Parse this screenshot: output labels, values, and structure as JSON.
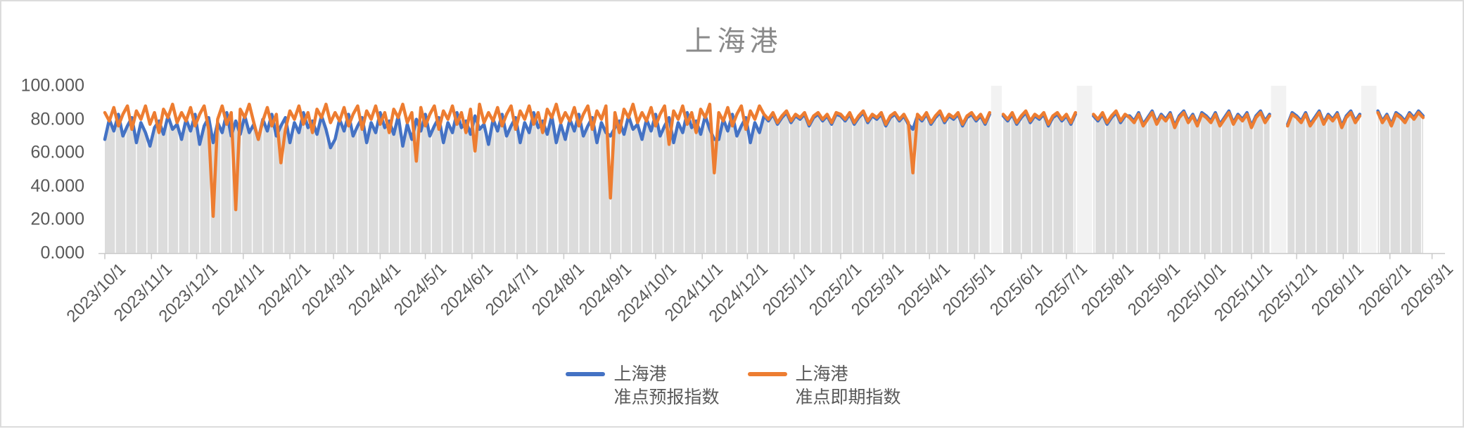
{
  "title": "上海港",
  "colors": {
    "forecast_blue": "#4472C4",
    "spot_orange": "#ED7D31",
    "area_gray": "#DCDCDC",
    "gap_band": "#F2F2F2",
    "gridline_white": "#FFFFFF",
    "axis_line": "#C9C9C9",
    "label_gray": "#595959",
    "title_gray": "#8A8A8A"
  },
  "y_axis": {
    "min": 0,
    "max": 100,
    "tick_labels_top_down": [
      "100.000",
      "80.000",
      "60.000",
      "40.000",
      "20.000",
      "0.000"
    ]
  },
  "legend": {
    "items": [
      {
        "line1": "上海港",
        "line2": "准点预报指数",
        "color": "#4472C4"
      },
      {
        "line1": "上海港",
        "line2": "准点即期指数",
        "color": "#ED7D31"
      }
    ]
  },
  "chart_data": {
    "type": "line",
    "title": "上海港",
    "ylim": [
      0,
      100
    ],
    "grid": "vertical-weekly-white-on-gray-area",
    "legend_position": "bottom-center",
    "x_start_date": "2023/10/1",
    "x_end_date": "2026/3/1",
    "x_unit": "days since 2023/10/1, values sampled every 3 days",
    "sample_step_days": 3,
    "day_ranges": [
      [
        0,
        588
      ],
      [
        597,
        645
      ],
      [
        657,
        774
      ],
      [
        786,
        834
      ],
      [
        846,
        876
      ]
    ],
    "data_gaps_days": [
      [
        589,
        596
      ],
      [
        646,
        656
      ],
      [
        775,
        785
      ],
      [
        835,
        845
      ]
    ],
    "month_ticks": [
      {
        "label": "2023/10/1",
        "day": 0
      },
      {
        "label": "2023/11/1",
        "day": 31
      },
      {
        "label": "2023/12/1",
        "day": 61
      },
      {
        "label": "2024/1/1",
        "day": 92
      },
      {
        "label": "2024/2/1",
        "day": 123
      },
      {
        "label": "2024/3/1",
        "day": 152
      },
      {
        "label": "2024/4/1",
        "day": 183
      },
      {
        "label": "2024/5/1",
        "day": 213
      },
      {
        "label": "2024/6/1",
        "day": 244
      },
      {
        "label": "2024/7/1",
        "day": 274
      },
      {
        "label": "2024/8/1",
        "day": 305
      },
      {
        "label": "2024/9/1",
        "day": 336
      },
      {
        "label": "2024/10/1",
        "day": 366
      },
      {
        "label": "2024/11/1",
        "day": 397
      },
      {
        "label": "2024/12/1",
        "day": 427
      },
      {
        "label": "2025/1/1",
        "day": 458
      },
      {
        "label": "2025/2/1",
        "day": 489
      },
      {
        "label": "2025/3/1",
        "day": 517
      },
      {
        "label": "2025/4/1",
        "day": 548
      },
      {
        "label": "2025/5/1",
        "day": 578
      },
      {
        "label": "2025/6/1",
        "day": 609
      },
      {
        "label": "2025/7/1",
        "day": 639
      },
      {
        "label": "2025/8/1",
        "day": 670
      },
      {
        "label": "2025/9/1",
        "day": 701
      },
      {
        "label": "2025/10/1",
        "day": 731
      },
      {
        "label": "2025/11/1",
        "day": 762
      },
      {
        "label": "2025/12/1",
        "day": 792
      },
      {
        "label": "2026/1/1",
        "day": 823
      },
      {
        "label": "2026/2/1",
        "day": 854
      },
      {
        "label": "2026/3/1",
        "day": 882
      }
    ],
    "notable_events": [
      {
        "date": "2023/12 late",
        "series": "准点即期指数",
        "value": 22
      },
      {
        "date": "2023/12 end",
        "series": "准点即期指数",
        "value": 26
      },
      {
        "date": "2024/1 late",
        "series": "准点即期指数",
        "value": 54
      },
      {
        "date": "2024/9 early",
        "series": "准点即期指数",
        "value": 33
      },
      {
        "date": "2024/11 mid",
        "series": "准点即期指数",
        "value": 48
      },
      {
        "date": "2025/3 late",
        "series": "准点即期指数",
        "value": 48
      }
    ],
    "series": [
      {
        "name": "上海港 准点预报指数",
        "color": "#4472C4",
        "area_fill_under": true,
        "values_csv": "68,80,73,83,70,76,81,66,78,72,64,75,79,71,82,74,77,68,80,73,83,65,76,81,66,78,72,84,70,79,71,82,72,77,68,80,73,83,70,76,81,66,78,72,84,75,79,71,82,74,63,68,80,73,83,70,76,81,66,78,72,84,75,79,71,82,64,77,68,80,73,83,70,76,81,66,78,72,84,75,79,71,82,74,77,65,80,73,83,70,76,81,66,78,72,84,75,79,71,82,66,77,68,80,73,83,70,76,81,66,78,72,70,75,79,71,82,74,77,68,80,73,83,70,76,81,66,78,72,84,75,79,71,82,74,68,68,80,73,83,70,76,81,66,78,72,82,79,83,77,81,84,78,82,80,83,76,81,83,79,82,77,83,82,79,83,77,81,84,78,82,80,83,76,81,83,79,82,77,74,82,79,83,77,81,84,78,82,80,83,76,81,83,79,82,77,83,82,79,83,77,81,84,78,82,80,83,76,81,83,79,82,77,83,82,79,83,77,81,84,78,82,82,79,84,77,81,85,78,83,80,84,76,82,85,79,83,77,84,82,79,84,77,81,85,78,83,80,84,76,82,85,79,83,77,84,82,79,84,77,81,85,78,83,80,84,76,82,85,79,83,85,79,83,77,84,82,79,84,81,85,82"
      },
      {
        "name": "上海港 准点即期指数",
        "color": "#ED7D31",
        "area_fill_under": false,
        "values_csv": "84,79,87,76,83,88,74,85,80,88,77,84,72,86,81,89,78,84,79,87,76,83,88,74,22,80,88,77,84,26,86,81,89,78,68,79,87,76,83,54,74,85,80,88,77,84,72,86,81,89,78,84,79,87,76,83,88,74,85,80,88,77,84,72,86,81,89,78,84,55,87,76,83,88,74,85,80,88,77,84,72,86,61,89,78,84,79,87,76,83,88,74,85,80,88,77,84,72,86,81,89,78,84,79,87,76,83,88,74,85,80,88,33,84,72,86,81,89,78,84,79,87,76,83,88,65,85,80,88,77,84,72,86,81,89,48,84,79,87,76,83,88,74,85,80,88,83,80,84,78,82,85,79,83,81,84,77,82,84,80,83,78,84,83,80,84,78,82,85,79,83,81,84,77,82,84,80,83,78,48,83,80,84,78,82,85,79,83,81,84,77,82,84,80,83,78,84,83,80,84,78,82,85,79,83,81,84,77,82,84,80,83,78,84,83,80,84,78,82,85,79,83,81,78,83,76,80,84,77,82,79,83,75,81,84,78,82,76,83,81,78,83,76,80,84,77,82,79,83,75,81,84,78,82,76,83,81,78,83,76,80,84,77,82,79,83,75,81,84,78,82,84,78,82,76,83,81,78,83,80,84,81"
      }
    ]
  }
}
